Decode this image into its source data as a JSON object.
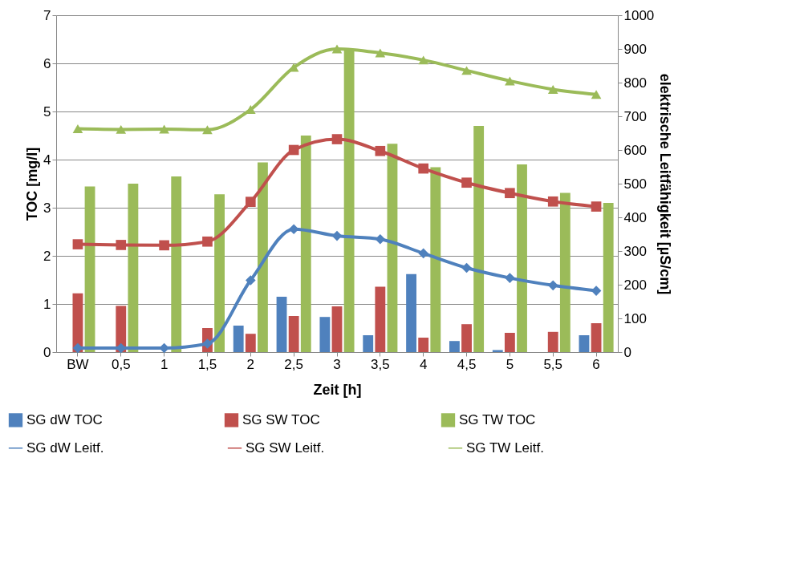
{
  "chart_data": {
    "type": "bar",
    "xlabel": "Zeit [h]",
    "ylabel": "TOC [mg/l]",
    "y2label": "elektrische Leitfähigkeit [µS/cm]",
    "categories": [
      "BW",
      "0,5",
      "1",
      "1,5",
      "2",
      "2,5",
      "3",
      "3,5",
      "4",
      "4,5",
      "5",
      "5,5",
      "6"
    ],
    "ylim": [
      0,
      7
    ],
    "yticks": [
      0,
      1,
      2,
      3,
      4,
      5,
      6,
      7
    ],
    "y2lim": [
      0,
      1000
    ],
    "y2ticks": [
      0,
      100,
      200,
      300,
      400,
      500,
      600,
      700,
      800,
      900,
      1000
    ],
    "grid": "y",
    "legend": "bottom",
    "series": [
      {
        "name": "SG dW TOC",
        "color": "#4f81bd",
        "values": [
          0,
          0,
          0,
          0,
          0.55,
          1.15,
          0.73,
          0.35,
          1.62,
          0.23,
          0.04,
          0,
          0.35
        ]
      },
      {
        "name": "SG SW TOC",
        "color": "#c0504d",
        "values": [
          1.22,
          0.96,
          0,
          0.5,
          0.38,
          0.75,
          0.95,
          1.36,
          0.3,
          0.58,
          0.4,
          0.42,
          0.6
        ]
      },
      {
        "name": "SG TW TOC",
        "color": "#9bbb59",
        "values": [
          3.44,
          3.5,
          3.65,
          3.28,
          3.94,
          4.5,
          6.3,
          4.33,
          3.84,
          4.7,
          3.9,
          3.31,
          3.1
        ]
      },
      {
        "name": "SG dW Leitf.",
        "type": "line",
        "axis": "y2",
        "marker": "diamond",
        "color": "#4f81bd",
        "values": [
          12,
          12,
          12,
          25,
          213,
          365,
          345,
          335,
          293,
          250,
          220,
          198,
          182
        ]
      },
      {
        "name": "SG SW Leitf.",
        "type": "line",
        "axis": "y2",
        "marker": "square",
        "color": "#c0504d",
        "values": [
          320,
          318,
          317,
          328,
          446,
          600,
          632,
          597,
          545,
          503,
          472,
          447,
          432
        ]
      },
      {
        "name": "SG TW Leitf.",
        "type": "line",
        "axis": "y2",
        "marker": "triangle",
        "color": "#9bbb59",
        "values": [
          663,
          661,
          662,
          660,
          720,
          845,
          900,
          888,
          867,
          836,
          805,
          780,
          765
        ]
      }
    ]
  }
}
